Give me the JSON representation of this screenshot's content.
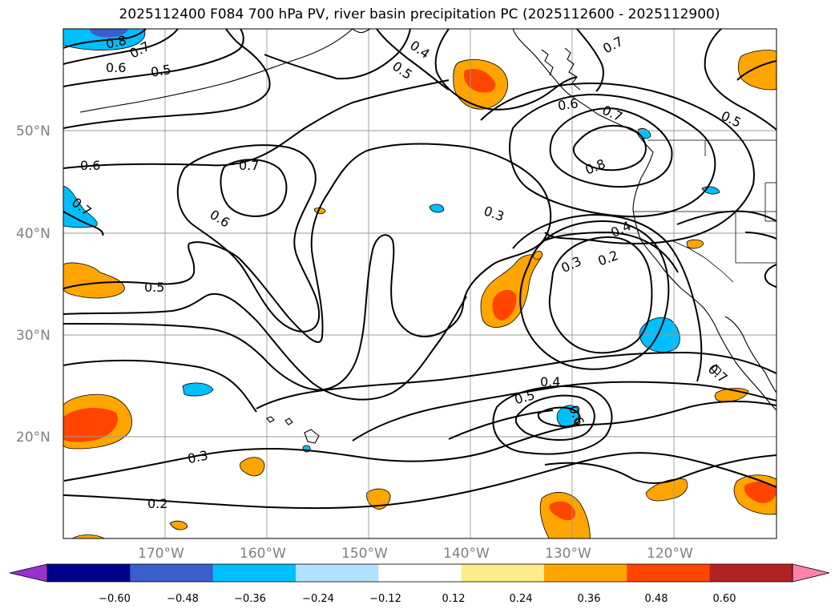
{
  "title": "2025112400 F084 700 hPa PV, river basin precipitation PC (2025112600 - 2025112900)",
  "lat_labels": [
    "50°N",
    "40°N",
    "30°N",
    "20°N"
  ],
  "lon_labels": [
    "170°W",
    "160°W",
    "150°W",
    "140°W",
    "130°W",
    "120°W"
  ],
  "colorbar": {
    "ticks": [
      "−0.60",
      "−0.48",
      "−0.36",
      "−0.24",
      "−0.12",
      "0.12",
      "0.24",
      "0.36",
      "0.48",
      "0.60"
    ],
    "colors": [
      "#9932cc",
      "#00008b",
      "#3a5fcd",
      "#00bfff",
      "#b0e2ff",
      "#ffffff",
      "#ffec8b",
      "#ffa500",
      "#ff4500",
      "#b22222",
      "#ff82ab"
    ]
  },
  "contour_labels": [
    "0.8",
    "0.7",
    "0.6",
    "0.5",
    "0.4",
    "0.5",
    "0.7",
    "0.5",
    "0.6",
    "0.7",
    "0.8",
    "0.6",
    "0.7",
    "0.7",
    "0.6",
    "0.3",
    "0.4",
    "0.3",
    "0.2",
    "0.5",
    "0.4",
    "0.5",
    "0.6",
    "0.3",
    "0.2",
    "0.7"
  ]
}
